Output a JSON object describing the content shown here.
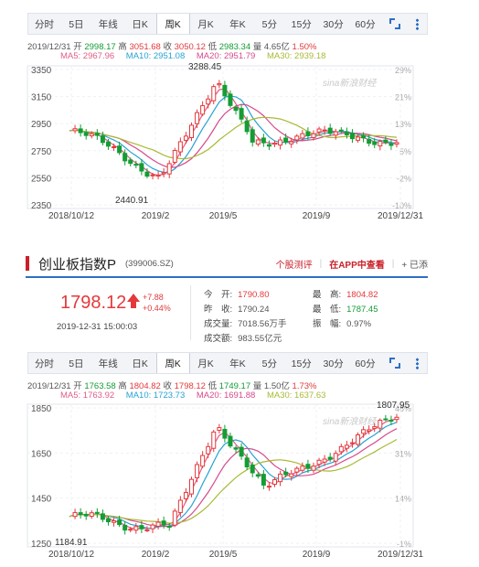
{
  "tabs": [
    "分时",
    "5日",
    "年线",
    "日K",
    "周K",
    "月K",
    "年K",
    "5分",
    "15分",
    "30分",
    "60分"
  ],
  "active_tab": "周K",
  "colors": {
    "up": "#e4393c",
    "down": "#139d34",
    "ma5": "#e25d87",
    "ma10": "#27a3d2",
    "ma20": "#d64a8b",
    "ma30": "#a9b935",
    "accent": "#2d6fc4"
  },
  "watermark": "sina新浪财经",
  "chart1": {
    "info": {
      "date": "2019/12/31",
      "open_label": "开",
      "open": "2998.17",
      "high_label": "高",
      "high": "3051.68",
      "close_label": "收",
      "close": "3050.12",
      "low_label": "低",
      "low": "2983.34",
      "vol_label": "量",
      "vol": "4.65亿",
      "pct": "1.50%"
    },
    "ma": {
      "ma5": "MA5: 2967.96",
      "ma10": "MA10: 2951.08",
      "ma20": "MA20: 2951.79",
      "ma30": "MA30: 2939.18"
    },
    "y_ticks": [
      "3350",
      "3150",
      "2950",
      "2750",
      "2550",
      "2350"
    ],
    "pct_ticks": [
      "29%",
      "21%",
      "13%",
      "5%",
      "-2%",
      "-10%"
    ],
    "x_ticks": [
      "2018/10/12",
      "2019/2",
      "2019/5",
      "2019/9",
      "2019/12/31"
    ],
    "max_label": "3288.45",
    "min_label": "2440.91"
  },
  "index": {
    "name": "创业板指数P",
    "code": "(399006.SZ)",
    "links": {
      "rating": "个股测评",
      "app": "在APP中查看",
      "add": "+ 已添"
    },
    "price": "1798.12",
    "change": "+7.88",
    "change_pct": "+0.44%",
    "time": "2019-12-31 15:00:03",
    "open_label": "今　开:",
    "open": "1790.80",
    "prev_label": "昨　收:",
    "prev": "1790.24",
    "vol_label": "成交量:",
    "vol": "7018.56万手",
    "amt_label": "成交额:",
    "amt": "983.55亿元",
    "high_label": "最　高:",
    "high": "1804.82",
    "low_label": "最　低:",
    "low": "1787.45",
    "amp_label": "振　幅:",
    "amp": "0.97%"
  },
  "chart2": {
    "info": {
      "date": "2019/12/31",
      "open_label": "开",
      "open": "1763.58",
      "high_label": "高",
      "high": "1804.82",
      "close_label": "收",
      "close": "1798.12",
      "low_label": "低",
      "low": "1749.17",
      "vol_label": "量",
      "vol": "1.50亿",
      "pct": "1.73%"
    },
    "ma": {
      "ma5": "MA5: 1763.92",
      "ma10": "MA10: 1723.73",
      "ma20": "MA20: 1691.88",
      "ma30": "MA30: 1637.63"
    },
    "y_ticks": [
      "1850",
      "1650",
      "1450",
      "1250"
    ],
    "pct_ticks": [
      "48%",
      "31%",
      "14%",
      "-1%"
    ],
    "x_ticks": [
      "2018/10/12",
      "2019/2",
      "2019/5",
      "2019/9",
      "2019/12/31"
    ],
    "max_label": "1807.95",
    "min_label": "1184.91"
  }
}
